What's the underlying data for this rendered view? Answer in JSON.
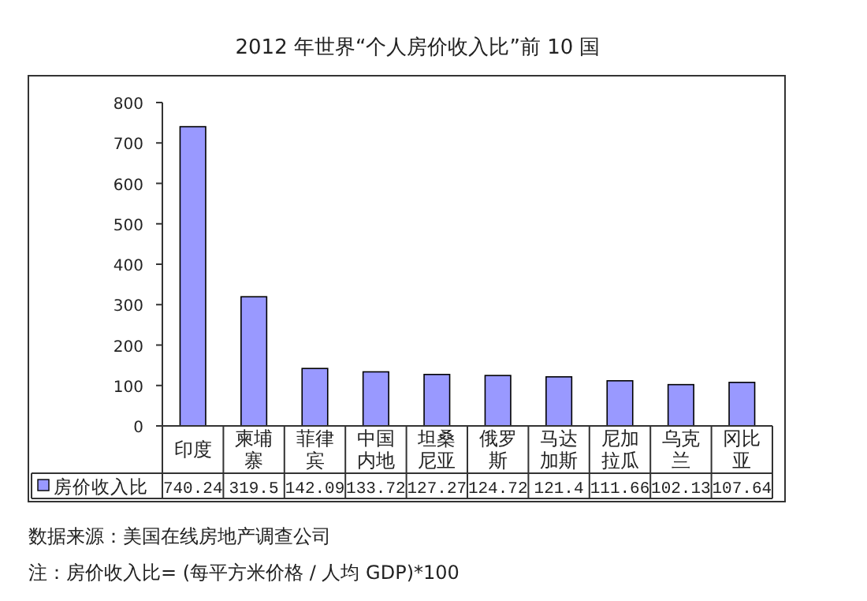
{
  "chart_data": {
    "type": "bar",
    "title": "2012 年世界“个人房价收入比”前 10 国",
    "categories": [
      "印度",
      "柬埔寨",
      "菲律宾",
      "中国内地",
      "坦桑尼亚",
      "俄罗斯",
      "马达加斯",
      "尼加拉瓜",
      "乌克兰",
      "冈比亚"
    ],
    "series": [
      {
        "name": "房价收入比",
        "color": "#9999ff",
        "values": [
          740.24,
          319.5,
          142.09,
          133.72,
          127.27,
          124.72,
          121.4,
          111.66,
          102.13,
          107.64
        ]
      }
    ],
    "ylim": [
      0,
      800
    ],
    "yticks": [
      0,
      100,
      200,
      300,
      400,
      500,
      600,
      700,
      800
    ],
    "data_labels": true,
    "legend": "bottom left",
    "annotations": [
      "数据来源：美国在线房地产调查公司",
      "注：房价收入比= (每平方米价格 / 人均 GDP)*100"
    ]
  }
}
